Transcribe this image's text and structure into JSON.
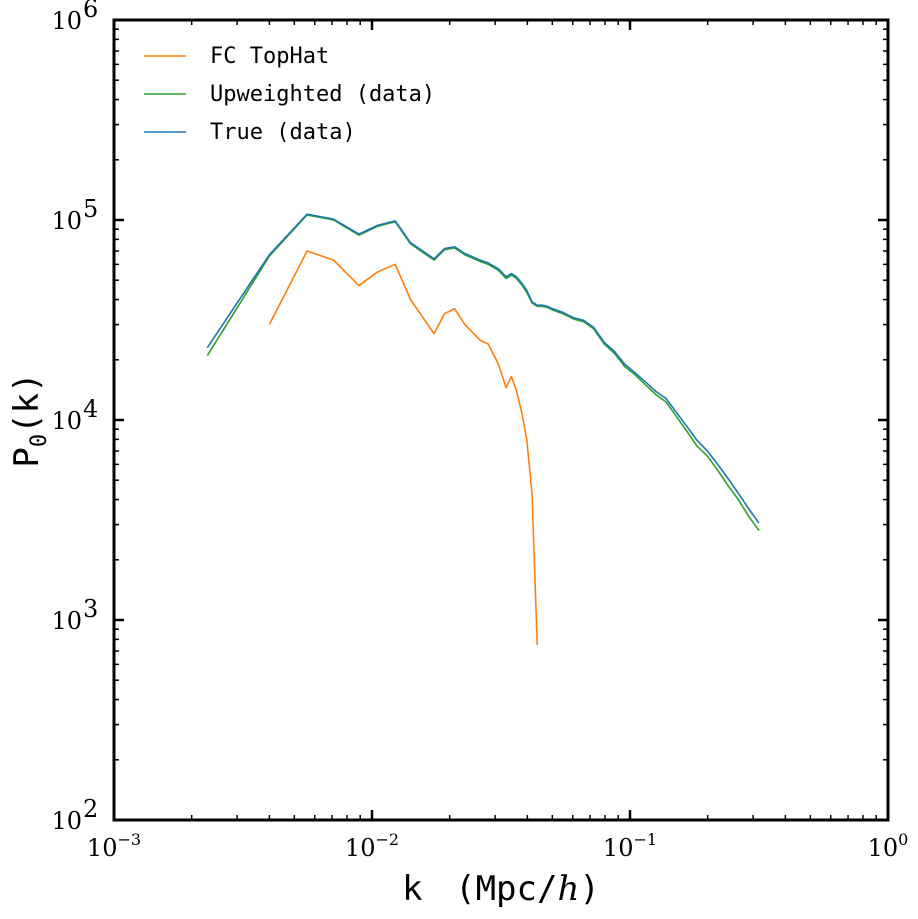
{
  "chart_data": {
    "type": "line",
    "xscale": "log",
    "yscale": "log",
    "xlim": [
      0.001,
      1
    ],
    "ylim": [
      100,
      1000000
    ],
    "xlabel": {
      "base": "k",
      "units": "(Mpc/",
      "units_italic": "h",
      "units_close": ")"
    },
    "ylabel": {
      "base": "P",
      "subscript": "0",
      "rest": "(k)"
    },
    "x_ticks": [
      {
        "base": "10",
        "exp": "−3"
      },
      {
        "base": "10",
        "exp": "−2"
      },
      {
        "base": "10",
        "exp": "−1"
      },
      {
        "base": "10",
        "exp": "0"
      }
    ],
    "y_ticks": [
      {
        "base": "10",
        "exp": "2"
      },
      {
        "base": "10",
        "exp": "3"
      },
      {
        "base": "10",
        "exp": "4"
      },
      {
        "base": "10",
        "exp": "5"
      },
      {
        "base": "10",
        "exp": "6"
      }
    ],
    "legend_position": "top-left",
    "grid": false,
    "series": [
      {
        "name": "FC TopHat",
        "color": "#ff7f0e",
        "points": [
          [
            0.004,
            30000
          ],
          [
            0.0056,
            70000
          ],
          [
            0.0071,
            63000
          ],
          [
            0.0089,
            47000
          ],
          [
            0.0105,
            55000
          ],
          [
            0.0123,
            60000
          ],
          [
            0.0141,
            40000
          ],
          [
            0.0174,
            27000
          ],
          [
            0.0191,
            34000
          ],
          [
            0.0209,
            36000
          ],
          [
            0.0229,
            30000
          ],
          [
            0.0263,
            25000
          ],
          [
            0.0282,
            24000
          ],
          [
            0.0309,
            19000
          ],
          [
            0.0331,
            14500
          ],
          [
            0.0347,
            16500
          ],
          [
            0.0363,
            14000
          ],
          [
            0.038,
            11000
          ],
          [
            0.0398,
            8000
          ],
          [
            0.0417,
            4300
          ],
          [
            0.0437,
            750
          ]
        ]
      },
      {
        "name": "Upweighted (data)",
        "color": "#2ca02c",
        "points": [
          [
            0.0023,
            21000
          ],
          [
            0.004,
            66000
          ],
          [
            0.0056,
            106000
          ],
          [
            0.0071,
            100000
          ],
          [
            0.0089,
            84000
          ],
          [
            0.0105,
            93000
          ],
          [
            0.0123,
            98000
          ],
          [
            0.0141,
            76000
          ],
          [
            0.0174,
            63000
          ],
          [
            0.0191,
            71000
          ],
          [
            0.0209,
            72500
          ],
          [
            0.0229,
            67000
          ],
          [
            0.0263,
            62000
          ],
          [
            0.0282,
            60000
          ],
          [
            0.0309,
            56000
          ],
          [
            0.0331,
            51000
          ],
          [
            0.0347,
            53000
          ],
          [
            0.0363,
            51000
          ],
          [
            0.038,
            47500
          ],
          [
            0.0398,
            43500
          ],
          [
            0.0417,
            38500
          ],
          [
            0.0437,
            37000
          ],
          [
            0.0457,
            37000
          ],
          [
            0.0479,
            36500
          ],
          [
            0.0501,
            35500
          ],
          [
            0.055,
            34000
          ],
          [
            0.0603,
            32000
          ],
          [
            0.0661,
            31000
          ],
          [
            0.0724,
            28500
          ],
          [
            0.0794,
            24000
          ],
          [
            0.0871,
            21500
          ],
          [
            0.0955,
            18500
          ],
          [
            0.1047,
            16800
          ],
          [
            0.1148,
            15000
          ],
          [
            0.1259,
            13400
          ],
          [
            0.138,
            12300
          ],
          [
            0.1514,
            10400
          ],
          [
            0.166,
            8800
          ],
          [
            0.182,
            7400
          ],
          [
            0.1995,
            6600
          ],
          [
            0.2188,
            5600
          ],
          [
            0.2399,
            4700
          ],
          [
            0.263,
            4000
          ],
          [
            0.2884,
            3300
          ],
          [
            0.3162,
            2800
          ]
        ]
      },
      {
        "name": "True (data)",
        "color": "#1f77b4",
        "points": [
          [
            0.0023,
            23000
          ],
          [
            0.004,
            67000
          ],
          [
            0.0056,
            107000
          ],
          [
            0.0071,
            101000
          ],
          [
            0.0089,
            85000
          ],
          [
            0.0105,
            94000
          ],
          [
            0.0123,
            99000
          ],
          [
            0.0141,
            77000
          ],
          [
            0.0174,
            64000
          ],
          [
            0.0191,
            72000
          ],
          [
            0.0209,
            73500
          ],
          [
            0.0229,
            68000
          ],
          [
            0.0263,
            63000
          ],
          [
            0.0282,
            61000
          ],
          [
            0.0309,
            57000
          ],
          [
            0.0331,
            52000
          ],
          [
            0.0347,
            54000
          ],
          [
            0.0363,
            52000
          ],
          [
            0.038,
            48500
          ],
          [
            0.0398,
            44500
          ],
          [
            0.0417,
            39000
          ],
          [
            0.0437,
            37500
          ],
          [
            0.0457,
            37500
          ],
          [
            0.0479,
            37000
          ],
          [
            0.0501,
            36000
          ],
          [
            0.055,
            34500
          ],
          [
            0.0603,
            32500
          ],
          [
            0.0661,
            31500
          ],
          [
            0.0724,
            29000
          ],
          [
            0.0794,
            24500
          ],
          [
            0.0871,
            22000
          ],
          [
            0.0955,
            19000
          ],
          [
            0.1047,
            17200
          ],
          [
            0.1148,
            15500
          ],
          [
            0.1259,
            13900
          ],
          [
            0.138,
            12800
          ],
          [
            0.1514,
            10900
          ],
          [
            0.166,
            9300
          ],
          [
            0.182,
            7900
          ],
          [
            0.1995,
            7000
          ],
          [
            0.2188,
            6000
          ],
          [
            0.2399,
            5100
          ],
          [
            0.263,
            4300
          ],
          [
            0.2884,
            3600
          ],
          [
            0.3162,
            3050
          ]
        ]
      }
    ]
  }
}
